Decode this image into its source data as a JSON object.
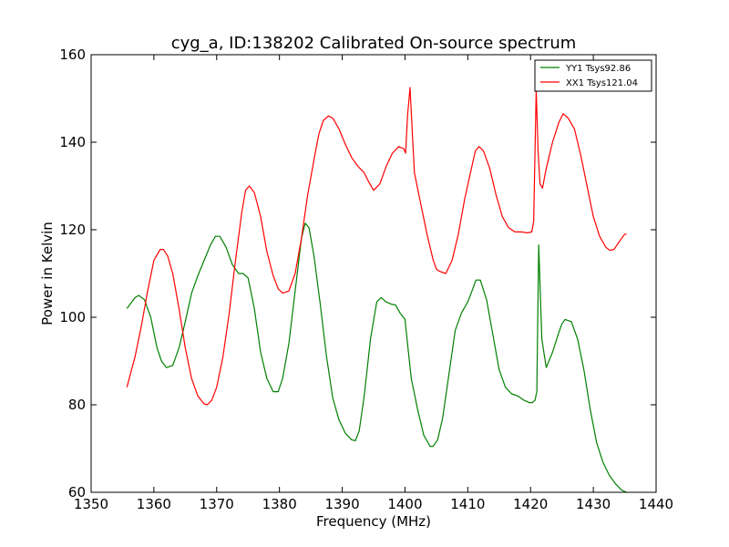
{
  "chart_data": {
    "type": "line",
    "title": "cyg_a, ID:138202 Calibrated On-source spectrum",
    "xlabel": "Frequency (MHz)",
    "ylabel": "Power in Kelvin",
    "xlim": [
      1350,
      1440
    ],
    "ylim": [
      60,
      160
    ],
    "xticks": [
      1350,
      1360,
      1370,
      1380,
      1390,
      1400,
      1410,
      1420,
      1430,
      1440
    ],
    "yticks": [
      60,
      80,
      100,
      120,
      140,
      160
    ],
    "xtick_labels": [
      "1350",
      "1360",
      "1370",
      "1380",
      "1390",
      "1400",
      "1410",
      "1420",
      "1430",
      "1440"
    ],
    "ytick_labels": [
      "60",
      "80",
      "100",
      "120",
      "140",
      "160"
    ],
    "grid": false,
    "legend_position": "top-right",
    "series": [
      {
        "name": "YY1 Tsys92.86",
        "color": "#008000",
        "x": [
          1355.7,
          1357,
          1357.6,
          1358.5,
          1359.5,
          1360.5,
          1361.2,
          1362,
          1363,
          1364,
          1365,
          1366,
          1367,
          1368,
          1369,
          1369.8,
          1370.5,
          1371.5,
          1372.5,
          1373.5,
          1374.2,
          1375,
          1376,
          1377,
          1378,
          1379,
          1379.8,
          1380.5,
          1381.5,
          1382.5,
          1383.5,
          1384.1,
          1384.7,
          1385.5,
          1386.5,
          1387.5,
          1388.5,
          1389.5,
          1390.5,
          1391.5,
          1392.1,
          1392.7,
          1393.5,
          1394.5,
          1395.5,
          1396.2,
          1397,
          1397.8,
          1398.5,
          1399.2,
          1400,
          1400.4,
          1401,
          1402,
          1403,
          1404,
          1404.5,
          1405.2,
          1406,
          1407,
          1408,
          1409,
          1410,
          1410.8,
          1411.3,
          1412,
          1413,
          1414,
          1415,
          1416,
          1417,
          1418,
          1419,
          1419.8,
          1420.3,
          1420.7,
          1421,
          1421.3,
          1421.8,
          1422.5,
          1423.5,
          1424.5,
          1425,
          1425.5,
          1426.5,
          1427.5,
          1428.5,
          1429.5,
          1430.5,
          1431.5,
          1432.5,
          1433.5,
          1434.5,
          1435.3
        ],
        "y": [
          102,
          104.5,
          105,
          104,
          100,
          93,
          90,
          88.5,
          89,
          93,
          99,
          105.5,
          109.5,
          113,
          116.5,
          118.5,
          118.5,
          116,
          112,
          110,
          110,
          109,
          102,
          92,
          86,
          83,
          83,
          86,
          94,
          106,
          118,
          121.5,
          120.5,
          114,
          103,
          91,
          81.5,
          76.5,
          73.5,
          72,
          71.8,
          74,
          82,
          95,
          103.5,
          104.5,
          103.5,
          103,
          102.8,
          101,
          99.5,
          94,
          86,
          79,
          73,
          70.5,
          70.5,
          72,
          77,
          87,
          97,
          101,
          103.5,
          106.5,
          108.5,
          108.5,
          104,
          96,
          88,
          84,
          82.5,
          82,
          81,
          80.5,
          80.5,
          81,
          83,
          116.5,
          95,
          88.5,
          92,
          96.5,
          98.5,
          99.5,
          99,
          95,
          88,
          79,
          71.5,
          67,
          64,
          62,
          60.5,
          60
        ]
      },
      {
        "name": "XX1 Tsys121.04",
        "color": "#ff0000",
        "x": [
          1355.7,
          1357,
          1358,
          1359,
          1360,
          1361,
          1361.5,
          1362.2,
          1363,
          1364,
          1365,
          1366,
          1367,
          1368,
          1368.5,
          1369.2,
          1370,
          1371,
          1372,
          1373,
          1374,
          1374.6,
          1375.2,
          1376,
          1377,
          1378,
          1379,
          1379.8,
          1380.5,
          1381.5,
          1382.5,
          1383.5,
          1384.5,
          1385.5,
          1386.3,
          1387,
          1387.8,
          1388.5,
          1389.5,
          1390.5,
          1391.5,
          1392.5,
          1393.5,
          1394.2,
          1395,
          1396,
          1397,
          1398,
          1399,
          1399.8,
          1400.1,
          1400.4,
          1400.8,
          1401.5,
          1402.5,
          1403.5,
          1404.5,
          1405,
          1405.5,
          1406.5,
          1407.5,
          1408.5,
          1409.5,
          1410.5,
          1411.2,
          1411.8,
          1412.5,
          1413.5,
          1414.5,
          1415.5,
          1416.5,
          1417.5,
          1418.5,
          1419.5,
          1420.2,
          1420.5,
          1420.9,
          1421.2,
          1421.5,
          1421.9,
          1422.5,
          1423.5,
          1424.5,
          1425.2,
          1426,
          1427,
          1428,
          1429,
          1430,
          1431,
          1432,
          1432.6,
          1433.3,
          1434,
          1435,
          1435.3
        ],
        "y": [
          84,
          91,
          98,
          106,
          113,
          115.5,
          115.5,
          114,
          110,
          102,
          93,
          86,
          82,
          80.2,
          80,
          81,
          84,
          91,
          101,
          113,
          124,
          129,
          130,
          128.5,
          123,
          115,
          109.5,
          106.5,
          105.5,
          106,
          110,
          118,
          128,
          136,
          142,
          145,
          146,
          145.5,
          143,
          139.5,
          136.5,
          134.5,
          133,
          131,
          129,
          130.5,
          134.5,
          137.5,
          139,
          138.5,
          137.5,
          146,
          152.5,
          133,
          126,
          119,
          113,
          111,
          110.5,
          110,
          113,
          119,
          127,
          133.5,
          138,
          139,
          138,
          134,
          128,
          123,
          120.5,
          119.5,
          119.5,
          119.3,
          119.5,
          122,
          152,
          138,
          130.5,
          129.5,
          134,
          140,
          144.5,
          146.5,
          145.5,
          143,
          137,
          130,
          123,
          118.5,
          116,
          115.3,
          115.5,
          117,
          119,
          119
        ]
      }
    ]
  }
}
